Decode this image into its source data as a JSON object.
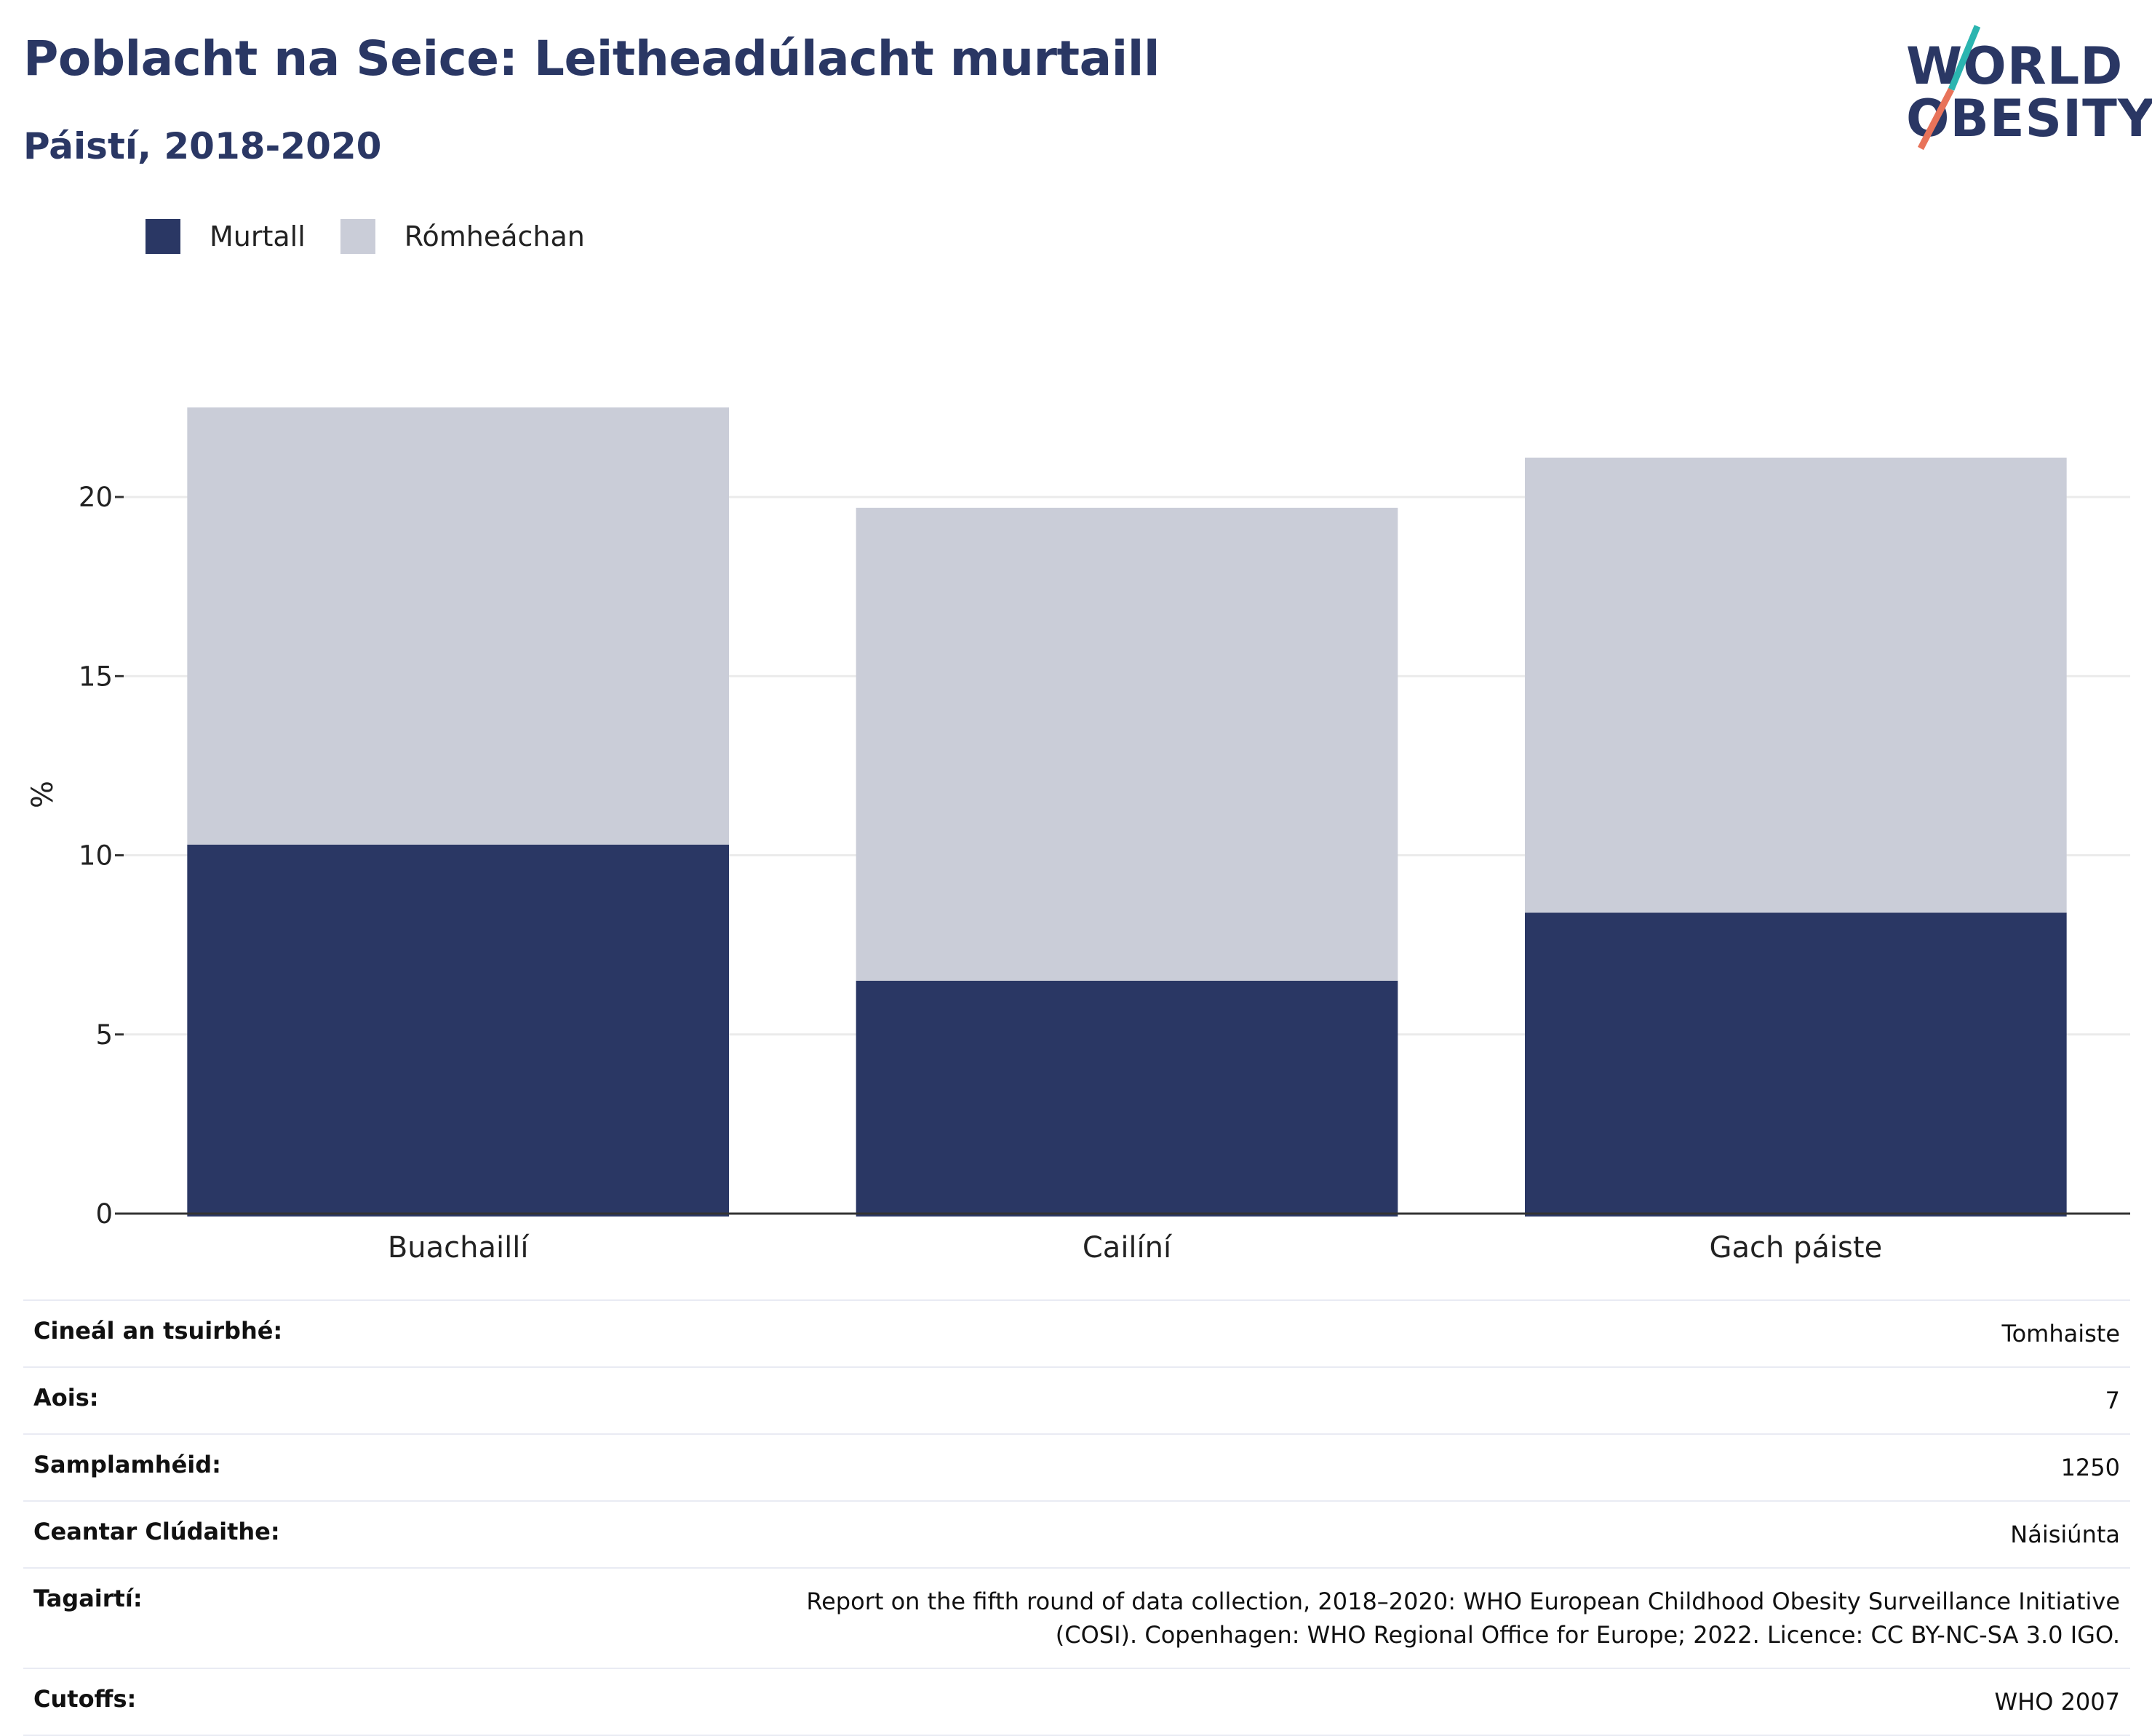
{
  "header": {
    "title": "Poblacht na Seice: Leitheadúlacht murtaill",
    "subtitle": "Páistí, 2018-2020"
  },
  "logo": {
    "line1": "WORLD",
    "line2": "OBESITY",
    "colors": {
      "text": "#2a3764",
      "slash_top": "#2bb5b0",
      "slash_bottom": "#e8735a"
    }
  },
  "colors": {
    "obese": "#2a3764",
    "overweight": "#cacdd8",
    "grid": "#ebebeb",
    "axis": "#333333"
  },
  "chart_data": {
    "type": "bar",
    "stacked": true,
    "categories": [
      "Buachaillí",
      "Cailíní",
      "Gach páiste"
    ],
    "series": [
      {
        "name": "Murtall",
        "values": [
          10.3,
          6.5,
          8.4
        ]
      },
      {
        "name": "Rómheáchan",
        "values": [
          12.2,
          13.2,
          12.7
        ]
      }
    ],
    "title": "",
    "xlabel": "",
    "ylabel": "%",
    "ylim": [
      0,
      22.5
    ],
    "yticks": [
      0,
      5,
      10,
      15,
      20
    ],
    "grid": true,
    "legend": "top-left"
  },
  "meta": [
    {
      "label": "Cineál an tsuirbhé:",
      "value": "Tomhaiste"
    },
    {
      "label": "Aois:",
      "value": "7"
    },
    {
      "label": "Samplamhéid:",
      "value": "1250"
    },
    {
      "label": "Ceantar Clúdaithe:",
      "value": "Náisiúnta"
    },
    {
      "label": "Tagairtí:",
      "value": "Report on the fifth round of data collection, 2018–2020: WHO European Childhood Obesity Surveillance Initiative (COSI). Copenhagen: WHO Regional Office for Europe; 2022. Licence: CC BY-NC-SA 3.0 IGO."
    },
    {
      "label": "Cutoffs:",
      "value": "WHO 2007"
    }
  ]
}
